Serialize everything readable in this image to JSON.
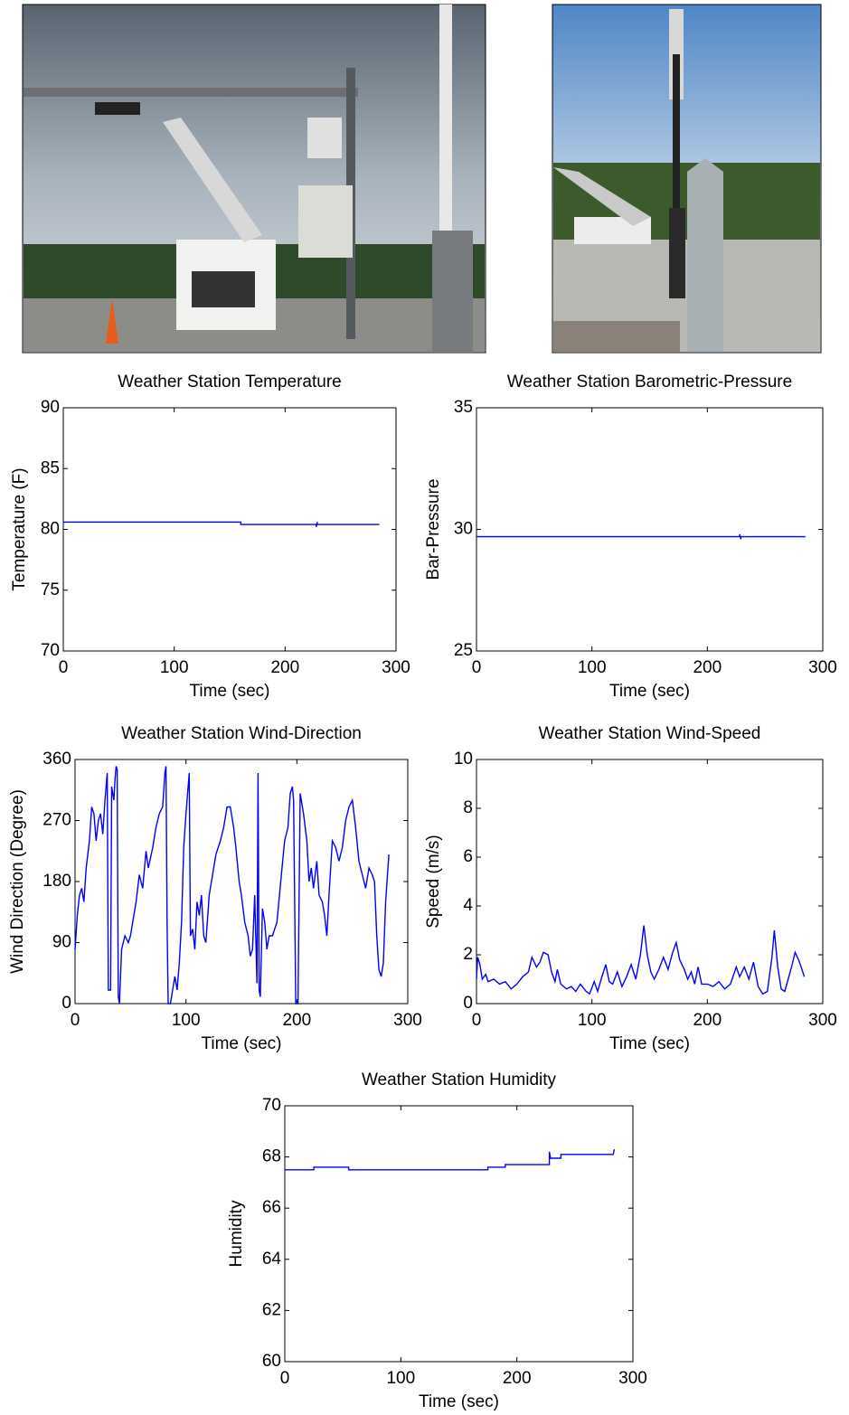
{
  "chart_data": [
    {
      "type": "line",
      "title": "Weather Station Temperature",
      "xlabel": "Time (sec)",
      "ylabel": "Temperature (F)",
      "color": "#0000ff",
      "x": [
        0,
        160,
        160,
        228,
        228,
        229,
        229,
        285
      ],
      "values": [
        80.6,
        80.6,
        80.4,
        80.4,
        80.2,
        80.6,
        80.4,
        80.4
      ],
      "xlim": [
        0,
        300
      ],
      "ylim": [
        70,
        90
      ],
      "xticks": [
        0,
        100,
        200,
        300
      ],
      "yticks": [
        70,
        75,
        80,
        85,
        90
      ]
    },
    {
      "type": "line",
      "title": "Weather Station Barometric-Pressure",
      "xlabel": "Time (sec)",
      "ylabel": "Bar-Pressure",
      "color": "#0000ff",
      "x": [
        0,
        228,
        228,
        229,
        229,
        285
      ],
      "values": [
        29.7,
        29.7,
        29.8,
        29.6,
        29.7,
        29.7
      ],
      "xlim": [
        0,
        300
      ],
      "ylim": [
        25,
        35
      ],
      "xticks": [
        0,
        100,
        200,
        300
      ],
      "yticks": [
        25,
        30,
        35
      ]
    },
    {
      "type": "line",
      "title": "Weather Station Wind-Direction",
      "xlabel": "Time (sec)",
      "ylabel": "Wind Direction (Degree)",
      "color": "#0000ff",
      "x": [
        0,
        2,
        4,
        6,
        8,
        10,
        13,
        15,
        17,
        19,
        21,
        23,
        25,
        27,
        29,
        30,
        32,
        33,
        35,
        36,
        37,
        38,
        39,
        40,
        42,
        45,
        48,
        50,
        55,
        58,
        61,
        64,
        66,
        70,
        73,
        76,
        79,
        81,
        82,
        83,
        84,
        86,
        88,
        90,
        92,
        94,
        96,
        98,
        100,
        102,
        103,
        104,
        106,
        108,
        110,
        112,
        114,
        116,
        118,
        121,
        124,
        127,
        131,
        134,
        137,
        140,
        143,
        145,
        148,
        150,
        153,
        156,
        158,
        160,
        162,
        164,
        165,
        166,
        167,
        169,
        171,
        173,
        175,
        178,
        182,
        186,
        189,
        192,
        194,
        196,
        197,
        198,
        199,
        201,
        203,
        206,
        209,
        211,
        213,
        215,
        218,
        220,
        223,
        225,
        227,
        229,
        232,
        235,
        238,
        241,
        244,
        247,
        250,
        253,
        256,
        259,
        262,
        265,
        268,
        270,
        272,
        274,
        276,
        278,
        280,
        283
      ],
      "values": [
        80,
        130,
        160,
        170,
        150,
        200,
        240,
        290,
        280,
        240,
        270,
        280,
        250,
        300,
        340,
        20,
        20,
        320,
        300,
        330,
        350,
        345,
        10,
        0,
        80,
        100,
        90,
        100,
        150,
        190,
        170,
        225,
        200,
        230,
        260,
        280,
        290,
        340,
        350,
        120,
        0,
        0,
        20,
        40,
        20,
        60,
        120,
        230,
        280,
        320,
        340,
        100,
        110,
        80,
        150,
        130,
        160,
        100,
        90,
        160,
        190,
        220,
        240,
        260,
        290,
        290,
        260,
        230,
        180,
        160,
        120,
        100,
        70,
        80,
        160,
        30,
        340,
        20,
        10,
        140,
        120,
        80,
        100,
        100,
        120,
        190,
        240,
        260,
        310,
        320,
        300,
        150,
        0,
        0,
        310,
        280,
        240,
        180,
        200,
        170,
        210,
        160,
        150,
        130,
        100,
        160,
        240,
        230,
        210,
        230,
        270,
        290,
        300,
        260,
        210,
        190,
        170,
        200,
        190,
        180,
        100,
        50,
        40,
        60,
        150,
        220
      ],
      "xlim": [
        0,
        300
      ],
      "ylim": [
        0,
        360
      ],
      "xticks": [
        0,
        100,
        200,
        300
      ],
      "yticks": [
        0,
        90,
        180,
        270,
        360
      ]
    },
    {
      "type": "line",
      "title": "Weather Station Wind-Speed",
      "xlabel": "Time (sec)",
      "ylabel": "Speed (m/s)",
      "color": "#0000ff",
      "x": [
        0,
        1,
        3,
        5,
        8,
        10,
        15,
        20,
        25,
        30,
        35,
        40,
        45,
        48,
        52,
        55,
        58,
        62,
        65,
        68,
        70,
        73,
        78,
        82,
        86,
        90,
        95,
        98,
        102,
        105,
        108,
        112,
        115,
        118,
        122,
        126,
        130,
        134,
        138,
        142,
        145,
        148,
        151,
        154,
        158,
        162,
        166,
        170,
        173,
        176,
        180,
        183,
        186,
        189,
        192,
        195,
        200,
        205,
        210,
        215,
        220,
        225,
        228,
        232,
        236,
        240,
        244,
        248,
        252,
        256,
        258,
        261,
        264,
        267,
        270,
        273,
        276,
        279,
        282,
        284
      ],
      "values": [
        1.0,
        1.9,
        1.6,
        1.0,
        1.2,
        0.9,
        1.0,
        0.8,
        0.9,
        0.6,
        0.8,
        1.1,
        1.3,
        1.9,
        1.5,
        1.7,
        2.1,
        2.0,
        1.3,
        0.9,
        1.4,
        0.8,
        0.6,
        0.7,
        0.5,
        0.8,
        0.5,
        0.4,
        0.9,
        0.5,
        1.0,
        1.6,
        0.9,
        0.8,
        1.3,
        0.7,
        1.1,
        1.6,
        1.0,
        2.0,
        3.2,
        2.0,
        1.3,
        1.0,
        1.4,
        1.9,
        1.4,
        2.1,
        2.5,
        1.8,
        1.4,
        1.0,
        1.3,
        0.8,
        1.5,
        0.8,
        0.8,
        0.7,
        0.9,
        0.6,
        0.8,
        1.5,
        1.1,
        1.5,
        1.0,
        1.7,
        0.7,
        0.4,
        0.5,
        1.9,
        3.0,
        1.5,
        0.6,
        0.5,
        1.0,
        1.5,
        2.1,
        1.8,
        1.4,
        1.1
      ],
      "xlim": [
        0,
        300
      ],
      "ylim": [
        0,
        10
      ],
      "xticks": [
        0,
        100,
        200,
        300
      ],
      "yticks": [
        0,
        2,
        4,
        6,
        8,
        10
      ]
    },
    {
      "type": "line",
      "title": "Weather Station Humidity",
      "xlabel": "Time (sec)",
      "ylabel": "Humidity",
      "color": "#0000ff",
      "x": [
        0,
        25,
        25,
        55,
        55,
        175,
        175,
        190,
        190,
        228,
        228,
        229,
        238,
        238,
        283,
        284
      ],
      "values": [
        67.5,
        67.5,
        67.6,
        67.6,
        67.5,
        67.5,
        67.6,
        67.6,
        67.7,
        67.7,
        68.2,
        67.95,
        67.95,
        68.1,
        68.1,
        68.3
      ],
      "xlim": [
        0,
        300
      ],
      "ylim": [
        60,
        70
      ],
      "xticks": [
        0,
        100,
        200,
        300
      ],
      "yticks": [
        60,
        62,
        64,
        66,
        68,
        70
      ]
    }
  ]
}
